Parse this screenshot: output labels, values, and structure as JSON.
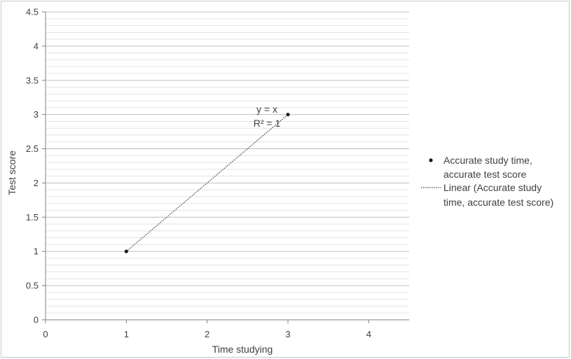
{
  "chart_data": {
    "type": "scatter",
    "title": "",
    "xlabel": "Time studying",
    "ylabel": "Test score",
    "xlim": [
      0,
      4.5
    ],
    "ylim": [
      0,
      4.5
    ],
    "x_ticks": [
      "0",
      "1",
      "2",
      "3",
      "4"
    ],
    "y_ticks": [
      "0",
      "0.5",
      "1",
      "1.5",
      "2",
      "2.5",
      "3",
      "3.5",
      "4",
      "4.5"
    ],
    "grid": "major and minor horizontal lines",
    "legend_position": "right",
    "series": [
      {
        "name": "Accurate study time, accurate test score",
        "points": [
          {
            "x": 1,
            "y": 1
          },
          {
            "x": 3,
            "y": 3
          }
        ],
        "color": "#1a1a1a"
      }
    ],
    "trendline": {
      "name": "Linear (Accurate study time, accurate test score)",
      "type": "linear",
      "equation": "y = x",
      "r_squared": "R² = 1",
      "color": "#404040"
    },
    "legend": {
      "series_label_lines": [
        "Accurate study time,",
        "accurate test score"
      ],
      "trend_label_lines": [
        "Linear (Accurate study",
        "time, accurate test score)"
      ]
    }
  }
}
